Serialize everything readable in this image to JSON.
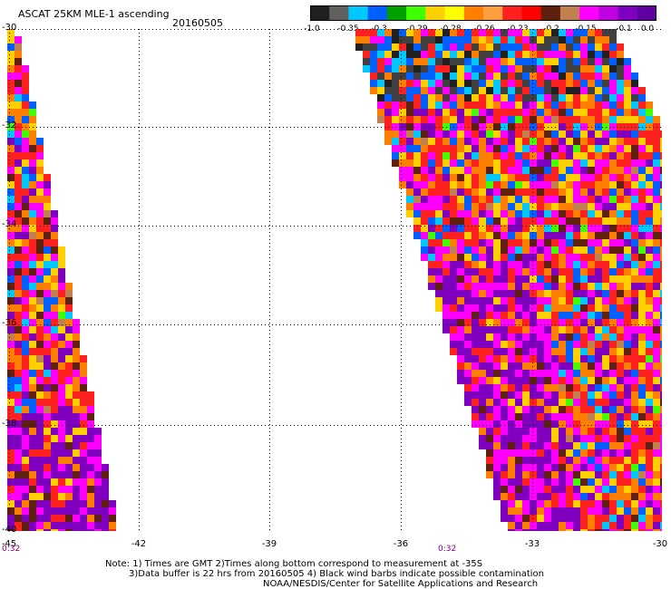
{
  "header": {
    "title": "ASCAT 25KM MLE-1 ascending",
    "date": "20160505"
  },
  "colorbar": {
    "labels": [
      "-1.0",
      "-0.35",
      "-0.3",
      "-0.29",
      "-0.28",
      "-0.26",
      "-0.23",
      "-0.2",
      "-0.15",
      "-0.1",
      "0.0"
    ],
    "colors": [
      "#202020",
      "#606060",
      "#00c8ff",
      "#0060ff",
      "#00a000",
      "#40ff00",
      "#ffd000",
      "#ffff00",
      "#ff8000",
      "#ffa040",
      "#ff2020",
      "#ff0000",
      "#602010",
      "#c08050",
      "#ff00ff",
      "#c000e0",
      "#8000c0",
      "#6000a0"
    ]
  },
  "axes": {
    "lat_labels": [
      "-30",
      "-32",
      "-34",
      "-36",
      "-38",
      "-40"
    ],
    "lon_labels": [
      "-45",
      "-42",
      "-39",
      "-36",
      "-33",
      "-30"
    ]
  },
  "time_labels": [
    "0:32",
    "0:32"
  ],
  "notes": {
    "line1": "Note: 1) Times are GMT 2)Times along bottom correspond to measurement at -35S",
    "line2": "3)Data buffer is 22 hrs from 20160505 4) Black wind barbs indicate possible contamination",
    "line3": "NOAA/NESDIS/Center for Satellite Applications and Research"
  },
  "palette": {
    "purple": "#8000c0",
    "magenta": "#ff00ff",
    "red": "#ff2020",
    "orange": "#ff8000",
    "yellow": "#ffd000",
    "brown": "#602010",
    "blue": "#0060ff",
    "grid": "#000000"
  }
}
